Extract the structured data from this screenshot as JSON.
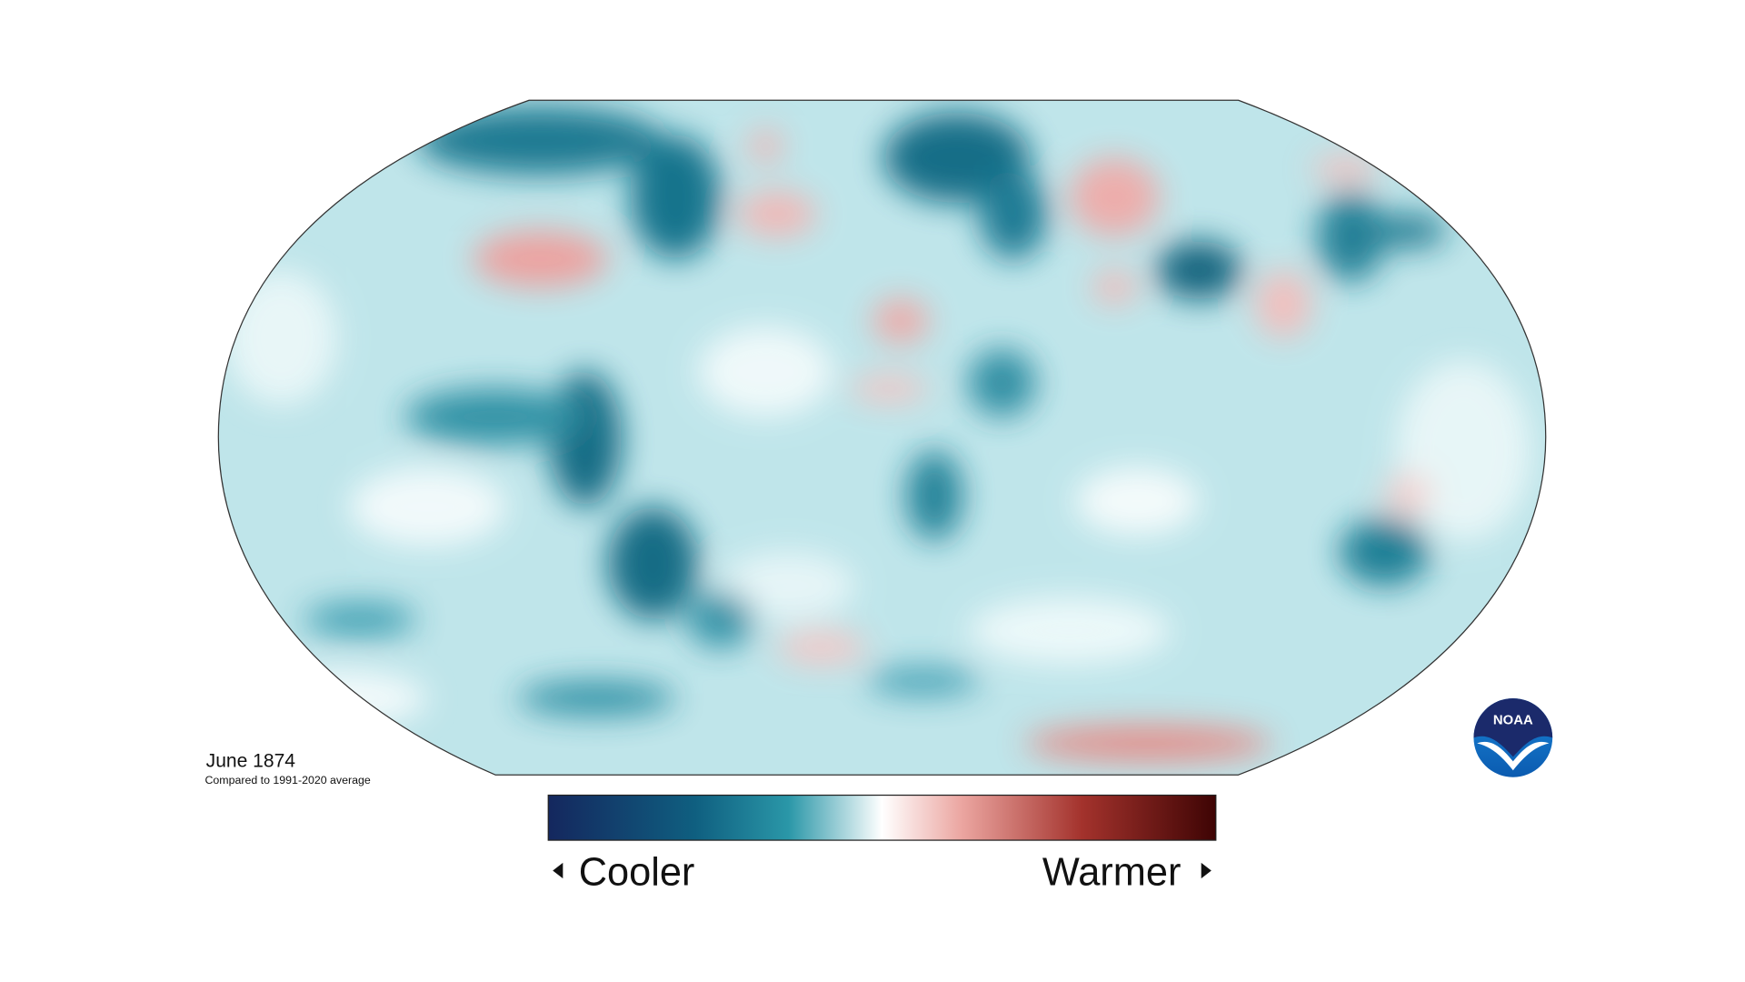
{
  "caption": {
    "date": "June 1874",
    "subtitle": "Compared to 1991-2020 average"
  },
  "legend": {
    "low": "Cooler",
    "high": "Warmer"
  },
  "logo": {
    "text": "NOAA"
  }
}
